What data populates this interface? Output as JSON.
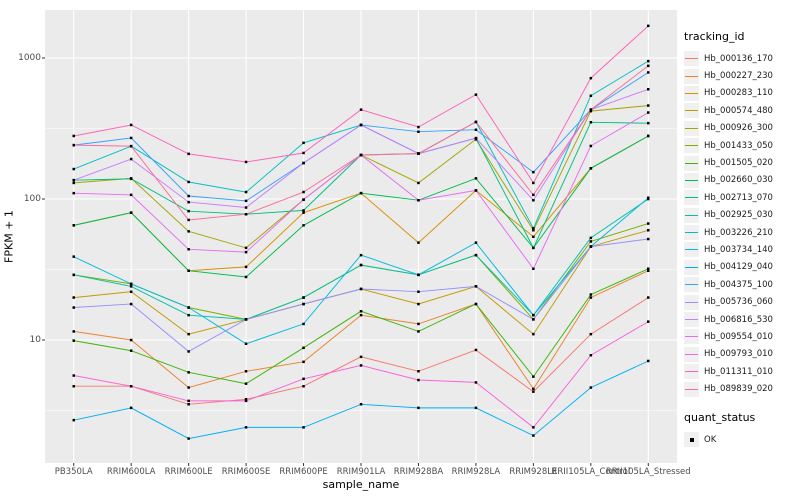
{
  "chart_data": {
    "type": "line",
    "title": "",
    "xlabel": "sample_name",
    "ylabel": "FPKM + 1",
    "y_scale": "log10",
    "y_ticks": [
      10,
      100,
      1000
    ],
    "y_minor_ticks": [
      3.162,
      31.62,
      316.2
    ],
    "ylim": [
      1.35,
      2200
    ],
    "grid": true,
    "legend_position": "right",
    "panel_bg": "#EBEBEB",
    "grid_color": "#FFFFFF",
    "point_color": "#000000",
    "axis_text_color": "#4D4D4D",
    "categories": [
      "PB350LA",
      "RRIM600LA",
      "RRIM600LE",
      "RRIM600SE",
      "RRIM600PE",
      "RRIM901LA",
      "RRIM928BA",
      "RRIM928LA",
      "RRIM928LE",
      "RRII105LA_Control",
      "RRII105LA_Stressed"
    ],
    "series": [
      {
        "name": "Hb_000136_170",
        "color": "#F8766D",
        "values": [
          4.7,
          4.7,
          3.5,
          3.8,
          4.7,
          7.6,
          6.0,
          8.5,
          4.3,
          11,
          20
        ]
      },
      {
        "name": "Hb_000227_230",
        "color": "#EA8331",
        "values": [
          11.5,
          10,
          4.6,
          6.0,
          7.0,
          15,
          13,
          18,
          4.5,
          20,
          31
        ]
      },
      {
        "name": "Hb_000283_110",
        "color": "#D89000",
        "values": [
          65,
          80,
          31,
          33,
          80,
          110,
          49,
          115,
          54,
          165,
          280
        ]
      },
      {
        "name": "Hb_000574_480",
        "color": "#C09B00",
        "values": [
          20,
          22,
          11,
          14,
          18,
          23,
          18,
          24,
          11,
          46,
          60
        ]
      },
      {
        "name": "Hb_000926_300",
        "color": "#A3A500",
        "values": [
          130,
          140,
          59,
          45,
          99,
          205,
          130,
          265,
          60,
          420,
          460
        ]
      },
      {
        "name": "Hb_001433_050",
        "color": "#7CAE00",
        "values": [
          29,
          25,
          17,
          14,
          20,
          34,
          29,
          40,
          14,
          50,
          67
        ]
      },
      {
        "name": "Hb_001505_020",
        "color": "#39B600",
        "values": [
          9.9,
          8.4,
          5.9,
          4.9,
          8.8,
          16,
          11.5,
          18,
          5.5,
          21,
          32
        ]
      },
      {
        "name": "Hb_002660_030",
        "color": "#00BB4E",
        "values": [
          65,
          80,
          31,
          28,
          65,
          110,
          98,
          140,
          45,
          165,
          280
        ]
      },
      {
        "name": "Hb_002713_070",
        "color": "#00BF7D",
        "values": [
          136,
          139,
          82,
          78,
          83,
          205,
          210,
          270,
          45,
          350,
          345
        ]
      },
      {
        "name": "Hb_002925_030",
        "color": "#00C1A3",
        "values": [
          29,
          24,
          15,
          14,
          20,
          34,
          29,
          40,
          15,
          53,
          100
        ]
      },
      {
        "name": "Hb_003226_210",
        "color": "#00BFC4",
        "values": [
          163,
          237,
          132,
          112,
          250,
          335,
          210,
          352,
          62,
          540,
          950
        ]
      },
      {
        "name": "Hb_003734_140",
        "color": "#00BAE0",
        "values": [
          39,
          25,
          17,
          9.4,
          13,
          40,
          29,
          49,
          15,
          46,
          102
        ]
      },
      {
        "name": "Hb_004129_040",
        "color": "#00B0F6",
        "values": [
          2.7,
          3.3,
          2.0,
          2.4,
          2.4,
          3.5,
          3.3,
          3.3,
          2.1,
          4.6,
          7.1
        ]
      },
      {
        "name": "Hb_004375_100",
        "color": "#35A2FF",
        "values": [
          241,
          271,
          105,
          97,
          180,
          335,
          300,
          310,
          155,
          430,
          790
        ]
      },
      {
        "name": "Hb_005736_060",
        "color": "#9590FF",
        "values": [
          17,
          18,
          8.3,
          14,
          18,
          23,
          22,
          24,
          14,
          46,
          52
        ]
      },
      {
        "name": "Hb_006816_530",
        "color": "#C77CFF",
        "values": [
          136,
          192,
          95,
          87,
          180,
          335,
          210,
          270,
          98,
          430,
          600
        ]
      },
      {
        "name": "Hb_009554_010",
        "color": "#E76BF3",
        "values": [
          110,
          107,
          44,
          42,
          99,
          205,
          98,
          115,
          32,
          238,
          410
        ]
      },
      {
        "name": "Hb_009793_010",
        "color": "#FA62DB",
        "values": [
          5.6,
          4.7,
          3.7,
          3.7,
          5.3,
          6.6,
          5.2,
          5.0,
          2.4,
          7.8,
          13.5
        ]
      },
      {
        "name": "Hb_011311_010",
        "color": "#FF62BC",
        "values": [
          280,
          335,
          209,
          183,
          212,
          430,
          324,
          550,
          130,
          720,
          1690
        ]
      },
      {
        "name": "Hb_089839_020",
        "color": "#FF6A98",
        "values": [
          241,
          237,
          71,
          78,
          112,
          205,
          210,
          352,
          107,
          430,
          880
        ]
      }
    ]
  },
  "legend": {
    "tracking_title": "tracking_id",
    "quant_title": "quant_status",
    "quant_ok_label": "OK"
  }
}
